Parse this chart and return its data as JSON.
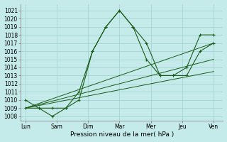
{
  "xlabel": "Pression niveau de la mer( hPa )",
  "x_labels": [
    "Lun",
    "Sam",
    "Dim",
    "Mar",
    "Mer",
    "Jeu",
    "Ven"
  ],
  "ylim": [
    1007.5,
    1021.8
  ],
  "yticks": [
    1008,
    1009,
    1010,
    1011,
    1012,
    1013,
    1014,
    1015,
    1016,
    1017,
    1018,
    1019,
    1020,
    1021
  ],
  "bg_color": "#c5eaea",
  "grid_color": "#9fcfcf",
  "line_color": "#1a5c1a",
  "lines": [
    {
      "x": [
        0,
        0.43,
        0.86,
        1.29,
        1.71,
        2.14,
        2.57,
        3.0,
        3.43,
        3.86,
        4.29,
        4.71,
        5.14,
        5.57,
        6.0
      ],
      "y": [
        1010,
        1009,
        1009,
        1009,
        1011,
        1016,
        1019,
        1021,
        1019,
        1017,
        1013,
        1013,
        1014,
        1018,
        1018
      ]
    },
    {
      "x": [
        0,
        0.43,
        0.86,
        1.29,
        1.71,
        2.14,
        2.57,
        3.0,
        3.43,
        3.86,
        4.29,
        4.71,
        5.14,
        5.57,
        6.0
      ],
      "y": [
        1009,
        1009,
        1008,
        1009,
        1010,
        1016,
        1019,
        1021,
        1019,
        1015,
        1013,
        1013,
        1013,
        1016,
        1017
      ]
    },
    {
      "x": [
        0,
        6.0
      ],
      "y": [
        1009,
        1017
      ]
    },
    {
      "x": [
        0,
        6.0
      ],
      "y": [
        1009,
        1015
      ]
    },
    {
      "x": [
        0,
        6.0
      ],
      "y": [
        1009,
        1013.5
      ]
    }
  ]
}
